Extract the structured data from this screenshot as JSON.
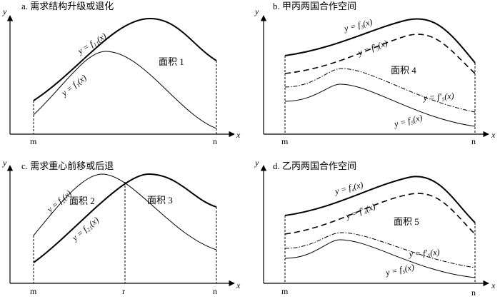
{
  "panels": {
    "a": {
      "title": "a. 需求结构升级或退化",
      "area": "面积 1",
      "curve_upper": "y = f₁₁(x)",
      "curve_lower": "y = f₁(x)",
      "x_axis": "x",
      "y_axis": "y",
      "tick_m": "m",
      "tick_n": "n"
    },
    "b": {
      "title": "b. 甲丙两国合作空间",
      "area": "面积 4",
      "curve_1": "y = f₃(x)",
      "curve_2": "y = f′₃(x)",
      "curve_3": "y = f′₅(x)",
      "curve_4": "y = f₅(x)",
      "x_axis": "x",
      "y_axis": "y",
      "tick_m": "m",
      "tick_n": "n"
    },
    "c": {
      "title": "c. 需求重心前移或后退",
      "area_left": "面积 2",
      "area_right": "面积 3",
      "curve_1": "y = f₂(x)",
      "curve_2": "y = f₂₁(x)",
      "x_axis": "x",
      "y_axis": "y",
      "tick_m": "m",
      "tick_r": "r",
      "tick_n": "n"
    },
    "d": {
      "title": "d. 乙丙两国合作空间",
      "area": "面积 5",
      "curve_1": "y = f₄(x)",
      "curve_2": "y = f′₄(x)",
      "curve_3": "y = f′₅(x)",
      "curve_4": "y = f₅(x)",
      "x_axis": "x",
      "y_axis": "y",
      "tick_m": "m",
      "tick_n": "n"
    }
  }
}
